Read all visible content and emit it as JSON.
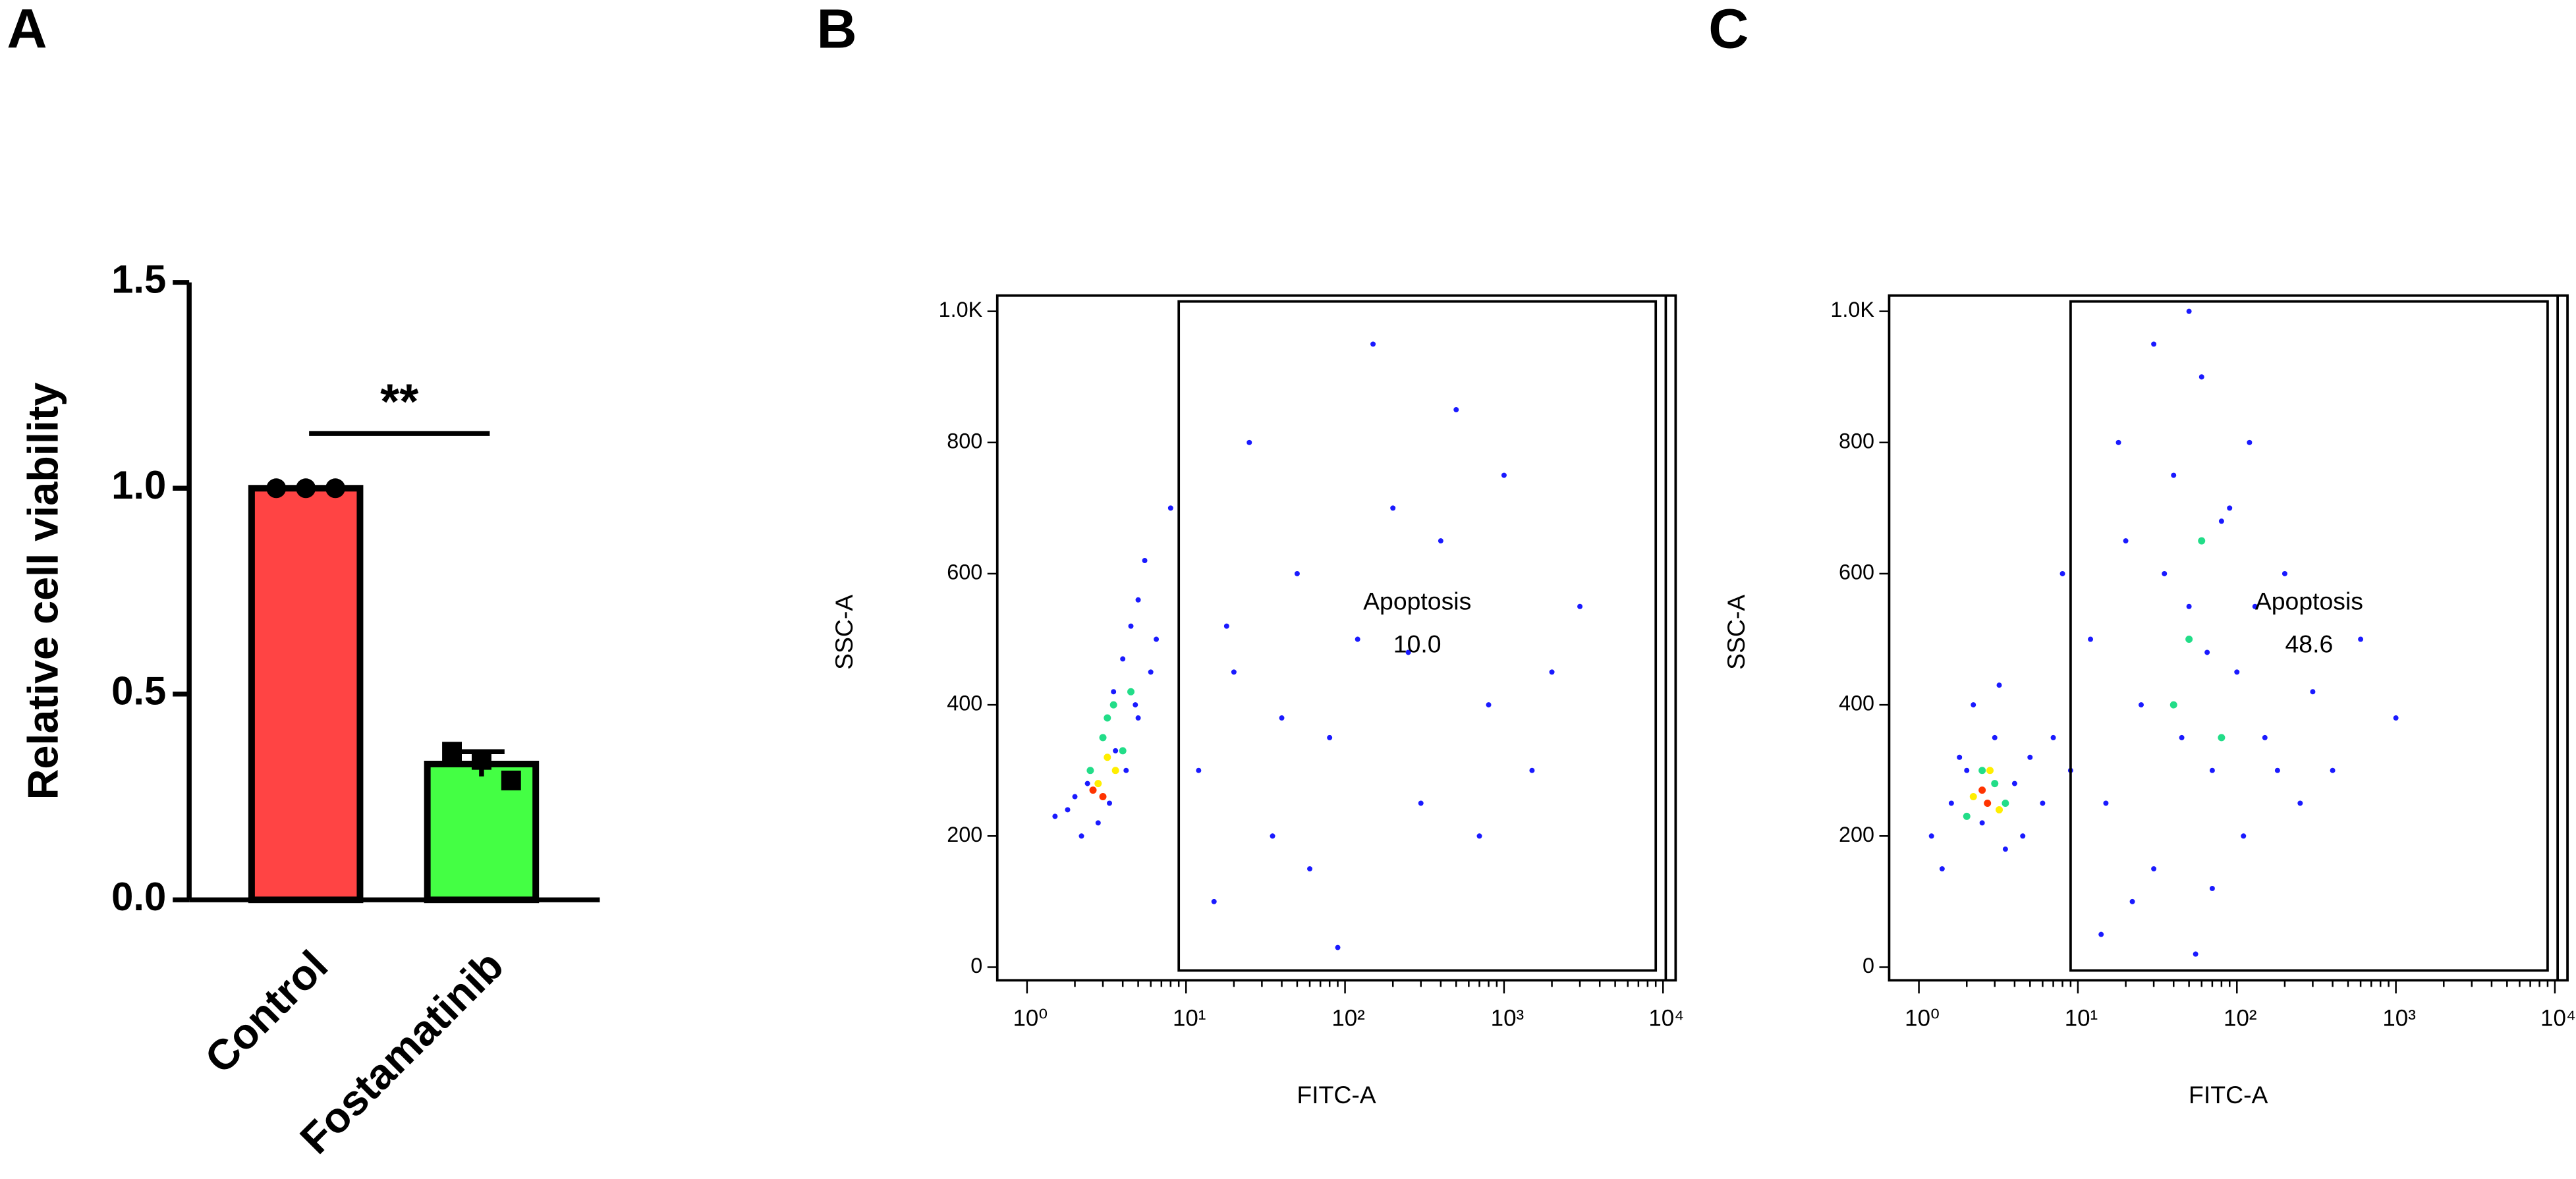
{
  "chart_data": [
    {
      "type": "bar",
      "panel": "A",
      "ylabel": "Relative cell viability",
      "categories": [
        "Control",
        "Fostamatinib"
      ],
      "values": [
        1.0,
        0.33
      ],
      "errors": [
        0,
        0.03
      ],
      "colors": [
        "#ff4444",
        "#44ff44"
      ],
      "markers": [
        "circle",
        "square"
      ],
      "points": [
        [
          1,
          1,
          1
        ],
        [
          0.36,
          0.34,
          0.29
        ]
      ],
      "ylim": [
        0,
        1.5
      ],
      "yticks": [
        {
          "value": 0,
          "label": "0.0"
        },
        {
          "value": 0.5,
          "label": "0.5"
        },
        {
          "value": 1,
          "label": "1.0"
        },
        {
          "value": 1.5,
          "label": "1.5"
        }
      ],
      "significance": "**"
    },
    {
      "type": "scatter",
      "panel": "B",
      "xlabel": "FITC-A",
      "ylabel": "SSC-A",
      "xscale": "log",
      "xlim": [
        0.65,
        12000
      ],
      "ylim": [
        -20,
        1024
      ],
      "xticks": [
        {
          "value": 1,
          "label": "10⁰"
        },
        {
          "value": 10,
          "label": "10¹"
        },
        {
          "value": 100,
          "label": "10²"
        },
        {
          "value": 1000,
          "label": "10³"
        },
        {
          "value": 10000,
          "label": "10⁴"
        }
      ],
      "yticks": [
        0,
        200,
        400,
        600,
        800,
        {
          "value": 1000,
          "label": "1.0K"
        }
      ],
      "gate": {
        "name": "Apoptosis",
        "x": [
          9,
          9000
        ],
        "y": [
          -5,
          1015
        ],
        "value": 10.0,
        "value_label": "10.0"
      },
      "series": [
        {
          "color": "#1a1aff",
          "x": [
            1.5,
            2,
            2.5,
            3,
            3.5,
            4,
            4.5,
            5,
            5.5,
            2.2,
            2.8,
            3.3,
            4.2,
            5,
            6,
            1.8,
            2.4,
            3.6,
            4.8,
            6.5,
            8,
            12,
            20,
            35,
            50,
            80,
            120,
            200,
            300,
            500,
            800,
            1500,
            3000,
            15,
            25,
            60,
            150,
            400,
            700,
            250,
            90,
            40,
            18,
            1000,
            2000
          ],
          "y": [
            230,
            260,
            300,
            350,
            420,
            470,
            520,
            560,
            620,
            200,
            220,
            250,
            300,
            380,
            450,
            240,
            280,
            330,
            400,
            500,
            700,
            300,
            450,
            200,
            600,
            350,
            500,
            700,
            250,
            850,
            400,
            300,
            550,
            100,
            800,
            150,
            950,
            650,
            200,
            480,
            30,
            380,
            520,
            750,
            450
          ]
        },
        {
          "color": "#22dd88",
          "x": [
            2.5,
            3,
            3.5,
            4,
            3.2,
            4.5
          ],
          "y": [
            300,
            350,
            400,
            330,
            380,
            420
          ]
        },
        {
          "color": "#ffee00",
          "x": [
            2.8,
            3.2,
            3.6
          ],
          "y": [
            280,
            320,
            300
          ]
        },
        {
          "color": "#ff3300",
          "x": [
            2.6,
            3
          ],
          "y": [
            270,
            260
          ]
        }
      ]
    },
    {
      "type": "scatter",
      "panel": "C",
      "xlabel": "FITC-A",
      "ylabel": "SSC-A",
      "xscale": "log",
      "xlim": [
        0.65,
        12000
      ],
      "ylim": [
        -20,
        1024
      ],
      "xticks": [
        {
          "value": 1,
          "label": "10⁰"
        },
        {
          "value": 10,
          "label": "10¹"
        },
        {
          "value": 100,
          "label": "10²"
        },
        {
          "value": 1000,
          "label": "10³"
        },
        {
          "value": 10000,
          "label": "10⁴"
        }
      ],
      "yticks": [
        0,
        200,
        400,
        600,
        800,
        {
          "value": 1000,
          "label": "1.0K"
        }
      ],
      "gate": {
        "name": "Apoptosis",
        "x": [
          9,
          9000
        ],
        "y": [
          -5,
          1015
        ],
        "value": 48.6,
        "value_label": "48.6"
      },
      "series": [
        {
          "color": "#1a1aff",
          "x": [
            1.2,
            1.6,
            2,
            2.5,
            3,
            3.5,
            4,
            5,
            6,
            1.4,
            1.8,
            2.2,
            3.2,
            4.5,
            7,
            9,
            12,
            15,
            20,
            25,
            30,
            40,
            50,
            60,
            70,
            80,
            100,
            120,
            150,
            200,
            250,
            300,
            400,
            600,
            1000,
            14,
            18,
            22,
            35,
            45,
            55,
            65,
            90,
            110,
            130,
            180,
            30,
            50,
            70,
            8
          ],
          "y": [
            200,
            250,
            300,
            220,
            350,
            180,
            280,
            320,
            250,
            150,
            320,
            400,
            430,
            200,
            350,
            300,
            500,
            250,
            650,
            400,
            150,
            750,
            550,
            900,
            300,
            680,
            450,
            800,
            350,
            600,
            250,
            420,
            300,
            500,
            380,
            50,
            800,
            100,
            600,
            350,
            20,
            480,
            700,
            200,
            550,
            300,
            950,
            1000,
            120,
            600
          ]
        },
        {
          "color": "#22dd88",
          "x": [
            2,
            2.5,
            3,
            3.5,
            50,
            60,
            40,
            80
          ],
          "y": [
            230,
            300,
            280,
            250,
            500,
            650,
            400,
            350
          ]
        },
        {
          "color": "#ffee00",
          "x": [
            2.2,
            2.8,
            3.2
          ],
          "y": [
            260,
            300,
            240
          ]
        },
        {
          "color": "#ff3300",
          "x": [
            2.5,
            2.7
          ],
          "y": [
            270,
            250
          ]
        }
      ]
    }
  ]
}
